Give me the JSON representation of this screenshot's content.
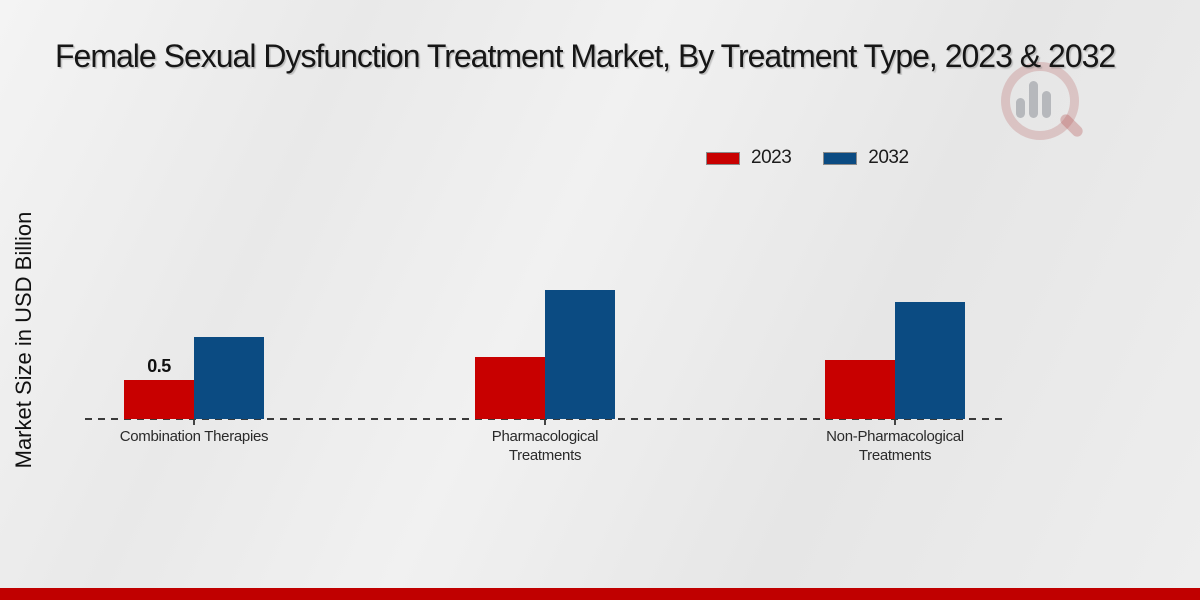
{
  "header": {
    "title": "Female Sexual Dysfunction Treatment Market, By Treatment Type, 2023 & 2032"
  },
  "chart_data": {
    "type": "bar",
    "title": "Female Sexual Dysfunction Treatment Market, By Treatment Type, 2023 & 2032",
    "xlabel": "",
    "ylabel": "Market Size in USD Billion",
    "value_unit": "USD Billion",
    "categories": [
      "Combination Therapies",
      "Pharmacological Treatments",
      "Non-Pharmacological Treatments"
    ],
    "series": [
      {
        "name": "2023",
        "color": "#C80000",
        "values": [
          0.5,
          0.8,
          0.75
        ],
        "bar_labels": [
          "0.5",
          "",
          ""
        ]
      },
      {
        "name": "2032",
        "color": "#0B4B82",
        "values": [
          1.05,
          1.65,
          1.5
        ],
        "bar_labels": [
          "",
          "",
          ""
        ]
      }
    ],
    "ylim": [
      0,
      2
    ],
    "grid": false,
    "value_axis_ticks_visible": false,
    "legend_position": "top-right",
    "baseline_style": "dashed"
  },
  "branding": {
    "watermark_icon": "magnifier-bar-chart-icon",
    "accent_red": "#C80000",
    "accent_blue": "#0B4B82",
    "footer_bar_color": "#C00000"
  }
}
